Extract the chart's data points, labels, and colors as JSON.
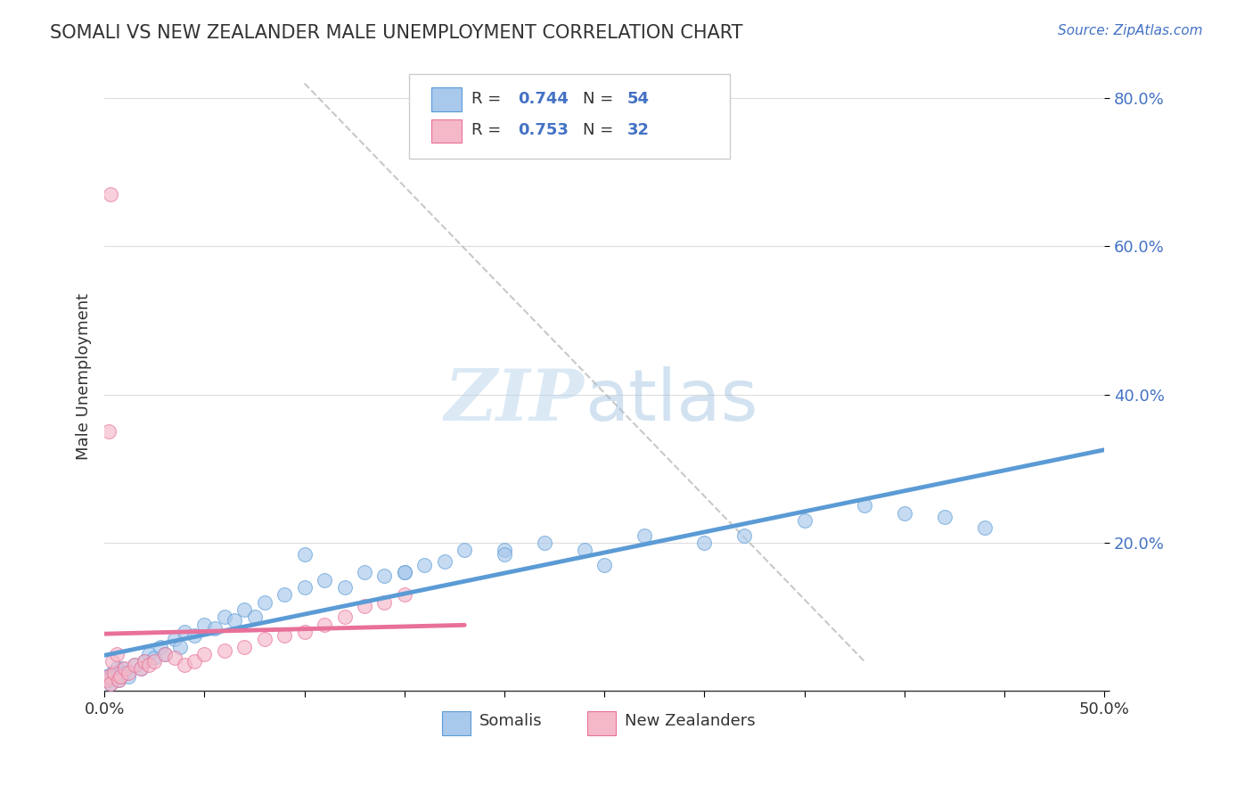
{
  "title": "SOMALI VS NEW ZEALANDER MALE UNEMPLOYMENT CORRELATION CHART",
  "source": "Source: ZipAtlas.com",
  "ylabel": "Male Unemployment",
  "xlim": [
    0.0,
    0.5
  ],
  "ylim": [
    0.0,
    0.85
  ],
  "somali_R": 0.744,
  "somali_N": 54,
  "nz_R": 0.753,
  "nz_N": 32,
  "somali_color": "#A8C8EC",
  "somali_color_dark": "#5B9BD5",
  "nz_color": "#F4B8C8",
  "nz_color_dark": "#E8709A",
  "background_color": "#FFFFFF",
  "grid_color": "#DDDDDD",
  "somali_scatter_x": [
    0.001,
    0.002,
    0.003,
    0.004,
    0.005,
    0.006,
    0.007,
    0.008,
    0.009,
    0.01,
    0.012,
    0.015,
    0.018,
    0.02,
    0.022,
    0.025,
    0.028,
    0.03,
    0.035,
    0.038,
    0.04,
    0.045,
    0.05,
    0.055,
    0.06,
    0.065,
    0.07,
    0.075,
    0.08,
    0.09,
    0.1,
    0.11,
    0.12,
    0.13,
    0.14,
    0.15,
    0.16,
    0.18,
    0.2,
    0.22,
    0.24,
    0.25,
    0.27,
    0.3,
    0.32,
    0.35,
    0.38,
    0.4,
    0.42,
    0.44,
    0.2,
    0.15,
    0.17,
    0.1
  ],
  "somali_scatter_y": [
    0.02,
    0.015,
    0.01,
    0.025,
    0.02,
    0.03,
    0.015,
    0.02,
    0.03,
    0.025,
    0.02,
    0.035,
    0.03,
    0.04,
    0.05,
    0.045,
    0.06,
    0.05,
    0.07,
    0.06,
    0.08,
    0.075,
    0.09,
    0.085,
    0.1,
    0.095,
    0.11,
    0.1,
    0.12,
    0.13,
    0.14,
    0.15,
    0.14,
    0.16,
    0.155,
    0.16,
    0.17,
    0.19,
    0.19,
    0.2,
    0.19,
    0.17,
    0.21,
    0.2,
    0.21,
    0.23,
    0.25,
    0.24,
    0.235,
    0.22,
    0.185,
    0.16,
    0.175,
    0.185
  ],
  "nz_scatter_x": [
    0.001,
    0.002,
    0.003,
    0.005,
    0.007,
    0.008,
    0.01,
    0.012,
    0.015,
    0.018,
    0.02,
    0.022,
    0.025,
    0.03,
    0.035,
    0.04,
    0.045,
    0.05,
    0.06,
    0.07,
    0.08,
    0.09,
    0.1,
    0.11,
    0.12,
    0.13,
    0.14,
    0.15,
    0.002,
    0.003,
    0.004,
    0.006
  ],
  "nz_scatter_y": [
    0.015,
    0.02,
    0.01,
    0.025,
    0.015,
    0.02,
    0.03,
    0.025,
    0.035,
    0.03,
    0.04,
    0.035,
    0.04,
    0.05,
    0.045,
    0.035,
    0.04,
    0.05,
    0.055,
    0.06,
    0.07,
    0.075,
    0.08,
    0.09,
    0.1,
    0.115,
    0.12,
    0.13,
    0.35,
    0.67,
    0.04,
    0.05
  ]
}
